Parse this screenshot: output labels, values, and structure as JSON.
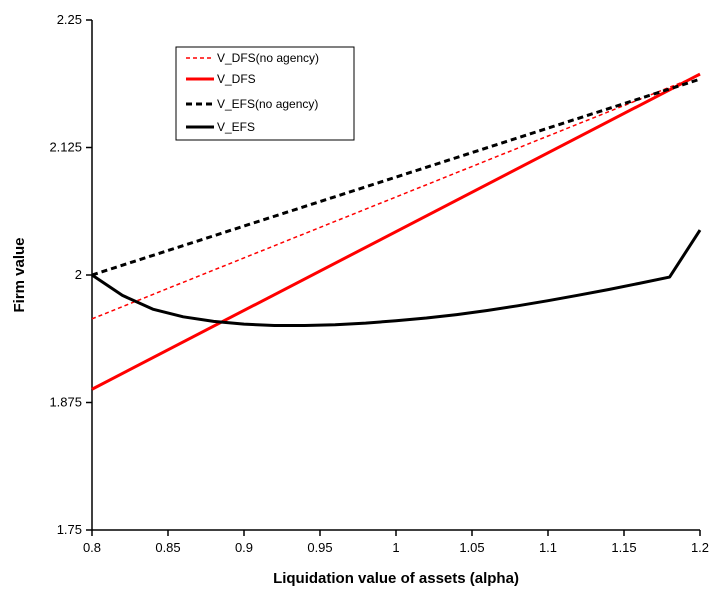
{
  "chart_data": {
    "type": "line",
    "title": "",
    "xlabel": "Liquidation value of assets (alpha)",
    "ylabel": "Firm value",
    "xlim": [
      0.8,
      1.2
    ],
    "ylim": [
      1.75,
      2.25
    ],
    "x_ticks": [
      "0.8",
      "0.85",
      "0.9",
      "0.95",
      "1",
      "1.05",
      "1.1",
      "1.15",
      "1.2"
    ],
    "y_ticks": [
      "1.75",
      "1.875",
      "2",
      "2.125",
      "2.25"
    ],
    "grid": false,
    "legend": "top-left",
    "series": [
      {
        "name": "V_DFS(no agency)",
        "color": "#ff0000",
        "style": "dashed",
        "x": [
          0.8,
          1.2
        ],
        "y": [
          1.957,
          2.196
        ]
      },
      {
        "name": "V_DFS",
        "color": "#ff0000",
        "style": "solid",
        "x": [
          0.8,
          1.2
        ],
        "y": [
          1.888,
          2.197
        ]
      },
      {
        "name": "V_EFS(no agency)",
        "color": "#000000",
        "style": "dashed",
        "x": [
          0.8,
          1.2
        ],
        "y": [
          2.0,
          2.192
        ]
      },
      {
        "name": "V_EFS",
        "color": "#000000",
        "style": "solid",
        "x": [
          0.8,
          0.82,
          0.84,
          0.86,
          0.88,
          0.9,
          0.92,
          0.94,
          0.96,
          0.98,
          1.0,
          1.02,
          1.04,
          1.06,
          1.08,
          1.1,
          1.12,
          1.14,
          1.16,
          1.18,
          1.2
        ],
        "y": [
          2.0,
          1.98,
          1.9665,
          1.959,
          1.9545,
          1.9518,
          1.9505,
          1.9505,
          1.9512,
          1.9528,
          1.9552,
          1.9578,
          1.9612,
          1.9652,
          1.9698,
          1.9748,
          1.9802,
          1.9858,
          1.9918,
          1.998,
          2.044
        ]
      }
    ]
  }
}
